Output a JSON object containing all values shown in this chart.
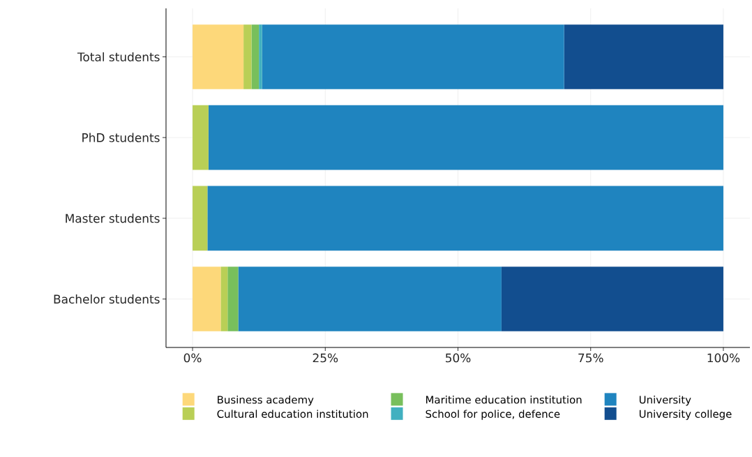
{
  "chart_data": {
    "type": "bar",
    "orientation": "horizontal",
    "stacked": true,
    "categories": [
      "Total students",
      "PhD students",
      "Master students",
      "Bachelor students"
    ],
    "series": [
      {
        "name": "Business academy",
        "color": "#fdd87a",
        "values": [
          9.6,
          0,
          0,
          5.3
        ]
      },
      {
        "name": "Cultural education institution",
        "color": "#b9cf56",
        "values": [
          1.5,
          3.0,
          2.8,
          1.3
        ]
      },
      {
        "name": "Maritime education institution",
        "color": "#78bf5c",
        "values": [
          1.4,
          0,
          0,
          2.0
        ]
      },
      {
        "name": "School for police, defence",
        "color": "#41b0c0",
        "values": [
          0.6,
          0,
          0,
          0
        ]
      },
      {
        "name": "University",
        "color": "#1f84bf",
        "values": [
          56.9,
          97.0,
          97.2,
          49.6
        ]
      },
      {
        "name": "University college",
        "color": "#124e8f",
        "values": [
          30.0,
          0,
          0,
          41.8
        ]
      }
    ],
    "xlim": [
      -5,
      105
    ],
    "xticks": [
      {
        "value": 0,
        "label": "0%"
      },
      {
        "value": 25,
        "label": "25%"
      },
      {
        "value": 50,
        "label": "50%"
      },
      {
        "value": 75,
        "label": "75%"
      },
      {
        "value": 100,
        "label": "100%"
      }
    ],
    "grid": true,
    "legend": "bottom"
  }
}
